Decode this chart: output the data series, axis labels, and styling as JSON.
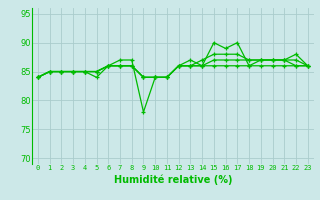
{
  "xlabel": "Humidité relative (%)",
  "bg_color": "#cce8e8",
  "grid_color": "#aacccc",
  "line_color": "#00bb00",
  "xlim": [
    -0.5,
    23.5
  ],
  "ylim": [
    69,
    96
  ],
  "yticks": [
    70,
    75,
    80,
    85,
    90,
    95
  ],
  "xticks": [
    0,
    1,
    2,
    3,
    4,
    5,
    6,
    7,
    8,
    9,
    10,
    11,
    12,
    13,
    14,
    15,
    16,
    17,
    18,
    19,
    20,
    21,
    22,
    23
  ],
  "series": [
    [
      84,
      85,
      85,
      85,
      85,
      84,
      86,
      87,
      87,
      78,
      84,
      84,
      86,
      87,
      86,
      90,
      89,
      90,
      86,
      87,
      87,
      87,
      88,
      86
    ],
    [
      84,
      85,
      85,
      85,
      85,
      85,
      86,
      86,
      86,
      84,
      84,
      84,
      86,
      86,
      86,
      86,
      86,
      86,
      86,
      86,
      86,
      86,
      86,
      86
    ],
    [
      84,
      85,
      85,
      85,
      85,
      85,
      86,
      86,
      86,
      84,
      84,
      84,
      86,
      86,
      86,
      87,
      87,
      87,
      87,
      87,
      87,
      87,
      87,
      86
    ],
    [
      84,
      85,
      85,
      85,
      85,
      85,
      86,
      86,
      86,
      84,
      84,
      84,
      86,
      86,
      87,
      88,
      88,
      88,
      87,
      87,
      87,
      87,
      86,
      86
    ]
  ]
}
